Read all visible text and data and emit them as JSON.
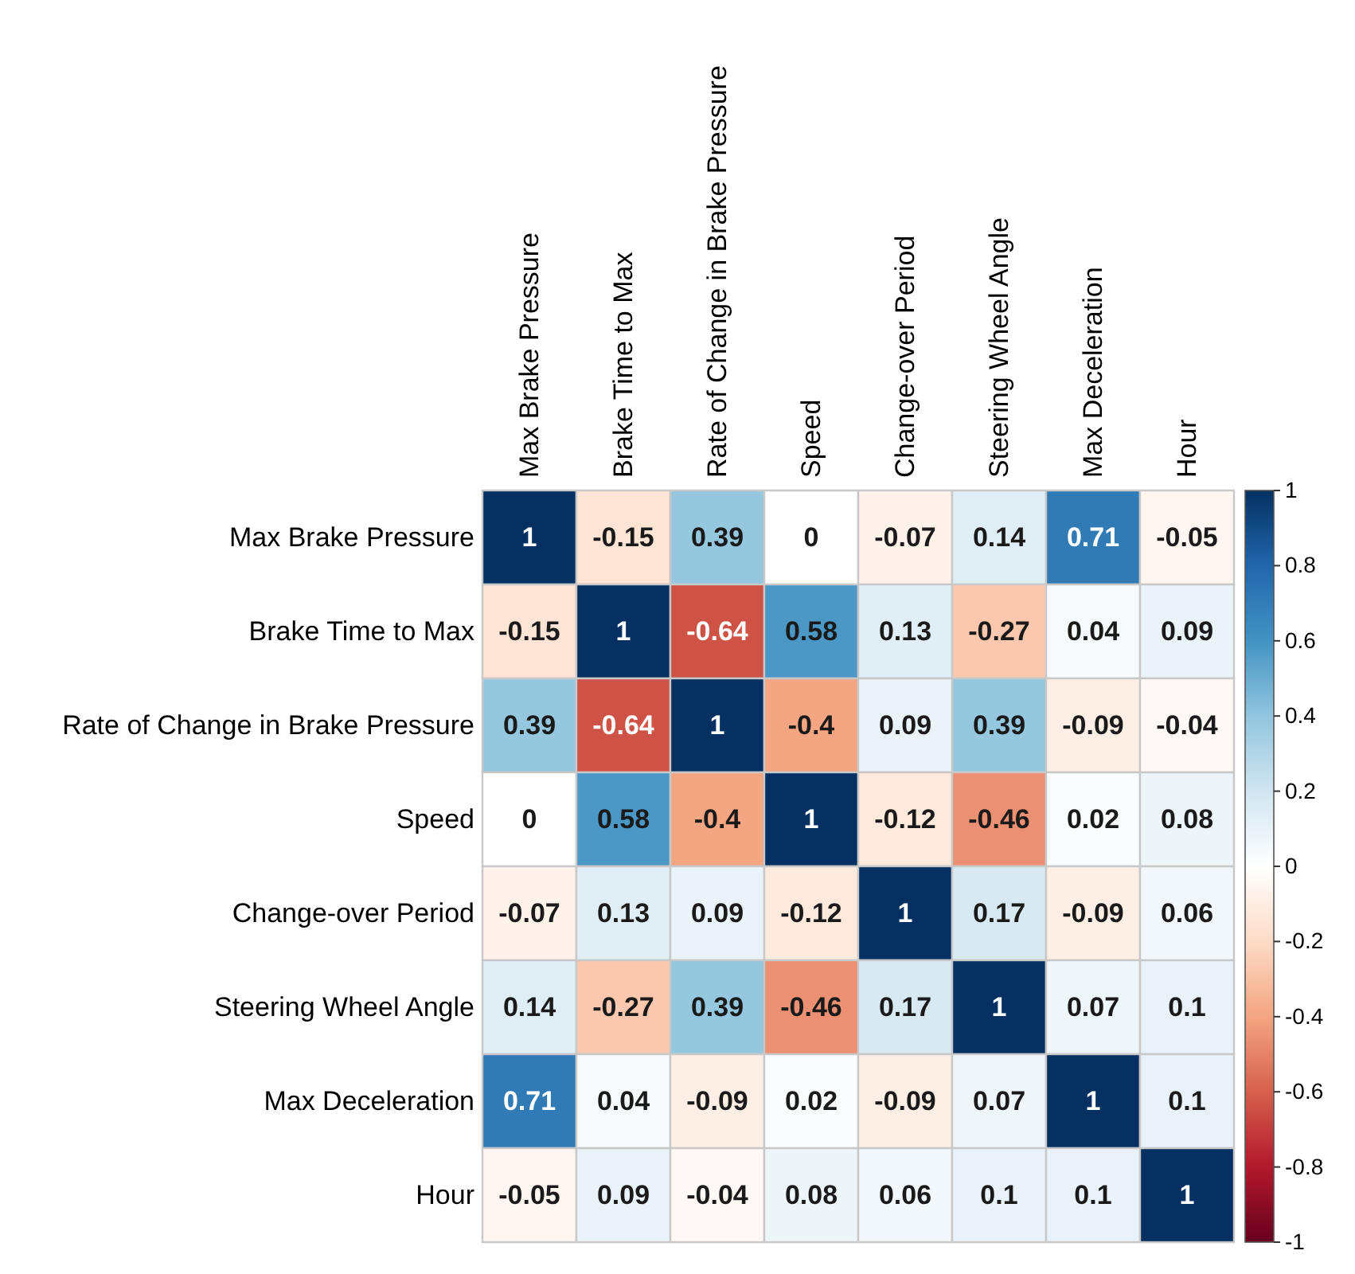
{
  "chart_data": {
    "type": "heatmap",
    "categories": [
      "Max Brake Pressure",
      "Brake Time to Max",
      "Rate of Change in Brake Pressure",
      "Speed",
      "Change-over Period",
      "Steering Wheel Angle",
      "Max Deceleration",
      "Hour"
    ],
    "y_categories": [
      "Max Brake Pressure",
      "Brake Time to Max",
      "Rate of Change in Brake Pressure",
      "Speed",
      "Change-over Period",
      "Steering Wheel Angle",
      "Max Deceleration",
      "Hour"
    ],
    "cells": [
      [
        1,
        -0.15,
        0.39,
        0,
        -0.07,
        0.14,
        0.71,
        -0.05
      ],
      [
        -0.15,
        1,
        -0.64,
        0.58,
        0.13,
        -0.27,
        0.04,
        0.09
      ],
      [
        0.39,
        -0.64,
        1,
        -0.4,
        0.09,
        0.39,
        -0.09,
        -0.04
      ],
      [
        0,
        0.58,
        -0.4,
        1,
        -0.12,
        -0.46,
        0.02,
        0.08
      ],
      [
        -0.07,
        0.13,
        0.09,
        -0.12,
        1,
        0.17,
        -0.09,
        0.06
      ],
      [
        0.14,
        -0.27,
        0.39,
        -0.46,
        0.17,
        1,
        0.07,
        0.1
      ],
      [
        0.71,
        0.04,
        -0.09,
        0.02,
        -0.09,
        0.07,
        1,
        0.1
      ],
      [
        -0.05,
        0.09,
        -0.04,
        0.08,
        0.06,
        0.1,
        0.1,
        1
      ]
    ],
    "clim": [
      -1,
      1
    ],
    "cticks": [
      -1,
      -0.8,
      -0.6,
      -0.4,
      -0.2,
      0,
      0.2,
      0.4,
      0.6,
      0.8,
      1
    ],
    "data_labels": true
  }
}
